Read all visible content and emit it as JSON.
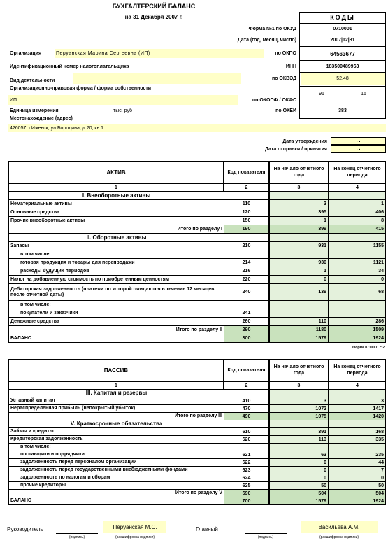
{
  "header": {
    "title": "БУХГАЛТЕРСКИЙ БАЛАНС",
    "date": "на 31 Декабря 2007 г.",
    "codes_title": "КОДЫ",
    "form_label": "Форма №1 по ОКУД",
    "form_code": "0710001",
    "date_label": "Дата (год, месяц, число)",
    "date_code": "2007|12|31",
    "org_label": "Организация",
    "org_value": "Перуанская Марина Сергеевна (ИП)",
    "okpo_label": "по ОКПО",
    "okpo": "64563677",
    "inn_label": "Идентификационный номер налогоплательщика",
    "inn_code_label": "ИНН",
    "inn": "183500489963",
    "activity_label": "Вид деятельности",
    "okved_label": "по ОКВЭД",
    "okved": "52.48",
    "legal_form_label": "Организационно-правовая форма / форма собственности",
    "legal_form_value": "ИП",
    "okopf_label": "по ОКОПФ / ОКФС",
    "okopf": "91",
    "okfs": "16",
    "unit_label": "Единица измерения",
    "unit_value": "тыс. руб",
    "okei_label": "по ОКЕИ",
    "okei": "383",
    "address_label": "Местонахождение (адрес)",
    "address": "426057, г.Ижевск, ул.Бородина, д.20, кв.1",
    "approve_label": "Дата утверждения",
    "approve_value": ". .",
    "sent_label": "Дата отправки / принятия",
    "sent_value": ". ."
  },
  "assets": {
    "headers": [
      "АКТИВ",
      "Код показателя",
      "На начало отчетного года",
      "На конец отчетного периода"
    ],
    "numbers": [
      "1",
      "2",
      "3",
      "4"
    ],
    "rows": [
      {
        "label": "I. Внеоборотные активы",
        "style": "section"
      },
      {
        "label": "Нематериальные активы",
        "code": "110",
        "start": 3,
        "end": 1
      },
      {
        "label": "Основные средства",
        "code": "120",
        "start": 395,
        "end": 406
      },
      {
        "label": "Прочие внеоборотные активы",
        "code": "150",
        "start": 1,
        "end": 8
      },
      {
        "label": "Итого по разделу I",
        "code": "190",
        "start": 399,
        "end": 415,
        "style": "total"
      },
      {
        "label": "II. Оборотные активы",
        "style": "section"
      },
      {
        "label": "Запасы",
        "code": "210",
        "start": 931,
        "end": 1155
      },
      {
        "label": "в том числе:",
        "style": "sub"
      },
      {
        "label": "готовая продукция и товары для перепродажи",
        "code": "214",
        "start": 930,
        "end": 1121,
        "style": "sub"
      },
      {
        "label": "расходы будущих периодов",
        "code": "216",
        "start": 1,
        "end": 34,
        "style": "sub"
      },
      {
        "label": "Налог на добавленную стоимость по приобретенным ценностям",
        "code": "220",
        "start": 0,
        "end": 0
      },
      {
        "label": "Дебиторская задолженность (платежи по которой ожидаются в течение 12 месяцев после отчетной даты)",
        "code": "240",
        "start": 139,
        "end": 68
      },
      {
        "label": "в том числе:",
        "style": "sub"
      },
      {
        "label": "покупатели и заказчики",
        "code": "241",
        "style": "sub"
      },
      {
        "label": "Денежные средства",
        "code": "260",
        "start": 110,
        "end": 286
      },
      {
        "label": "Итого по разделу II",
        "code": "290",
        "start": 1180,
        "end": 1509,
        "style": "total"
      },
      {
        "label": "БАЛАНС",
        "code": "300",
        "start": 1579,
        "end": 1924,
        "style": "balance"
      }
    ]
  },
  "form_note": "Форма 0710001 с.2",
  "liabilities": {
    "headers": [
      "ПАССИВ",
      "Код показателя",
      "На начало отчетного года",
      "На конец отчетного периода"
    ],
    "numbers": [
      "1",
      "2",
      "3",
      "4"
    ],
    "rows": [
      {
        "label": "III. Капитал и резервы",
        "style": "section"
      },
      {
        "label": "Уставный капитал",
        "code": "410",
        "start": 3,
        "end": 3
      },
      {
        "label": "Нераспределенная прибыль (непокрытый убыток)",
        "code": "470",
        "start": 1072,
        "end": 1417
      },
      {
        "label": "Итого по разделу III",
        "code": "490",
        "start": 1075,
        "end": 1420,
        "style": "total"
      },
      {
        "label": "V. Краткосрочные обязательства",
        "style": "section"
      },
      {
        "label": "Займы и кредиты",
        "code": "610",
        "start": 391,
        "end": 168
      },
      {
        "label": "Кредиторская задолженность",
        "code": "620",
        "start": 113,
        "end": 335
      },
      {
        "label": "в том числе:",
        "style": "sub"
      },
      {
        "label": "поставщики и подрядчики",
        "code": "621",
        "start": 63,
        "end": 235,
        "style": "sub"
      },
      {
        "label": "задолженность перед персоналом организации",
        "code": "622",
        "start": 0,
        "end": 44,
        "style": "sub"
      },
      {
        "label": "задолженность перед государственными внебюджетными фондами",
        "code": "623",
        "start": 0,
        "end": 7,
        "style": "sub"
      },
      {
        "label": "задолженность по налогам и сборам",
        "code": "624",
        "start": 0,
        "end": 0,
        "style": "sub"
      },
      {
        "label": "прочие кредиторы",
        "code": "625",
        "start": 50,
        "end": 50,
        "style": "sub"
      },
      {
        "label": "Итого по разделу V",
        "code": "690",
        "start": 504,
        "end": 504,
        "style": "total"
      },
      {
        "label": "БАЛАНС",
        "code": "700",
        "start": 1579,
        "end": 1924,
        "style": "balance"
      }
    ]
  },
  "signatures": {
    "head_label": "Руководитель",
    "head_sign": "(подпись)",
    "head_name": "Перуанская М.С.",
    "head_name_caption": "(расшифровка подписи)",
    "chief_label": "Главный",
    "chief_sign": "(подпись)",
    "chief_name": "Васильева А.М.",
    "chief_name_caption": "(расшифровка подписи)"
  }
}
